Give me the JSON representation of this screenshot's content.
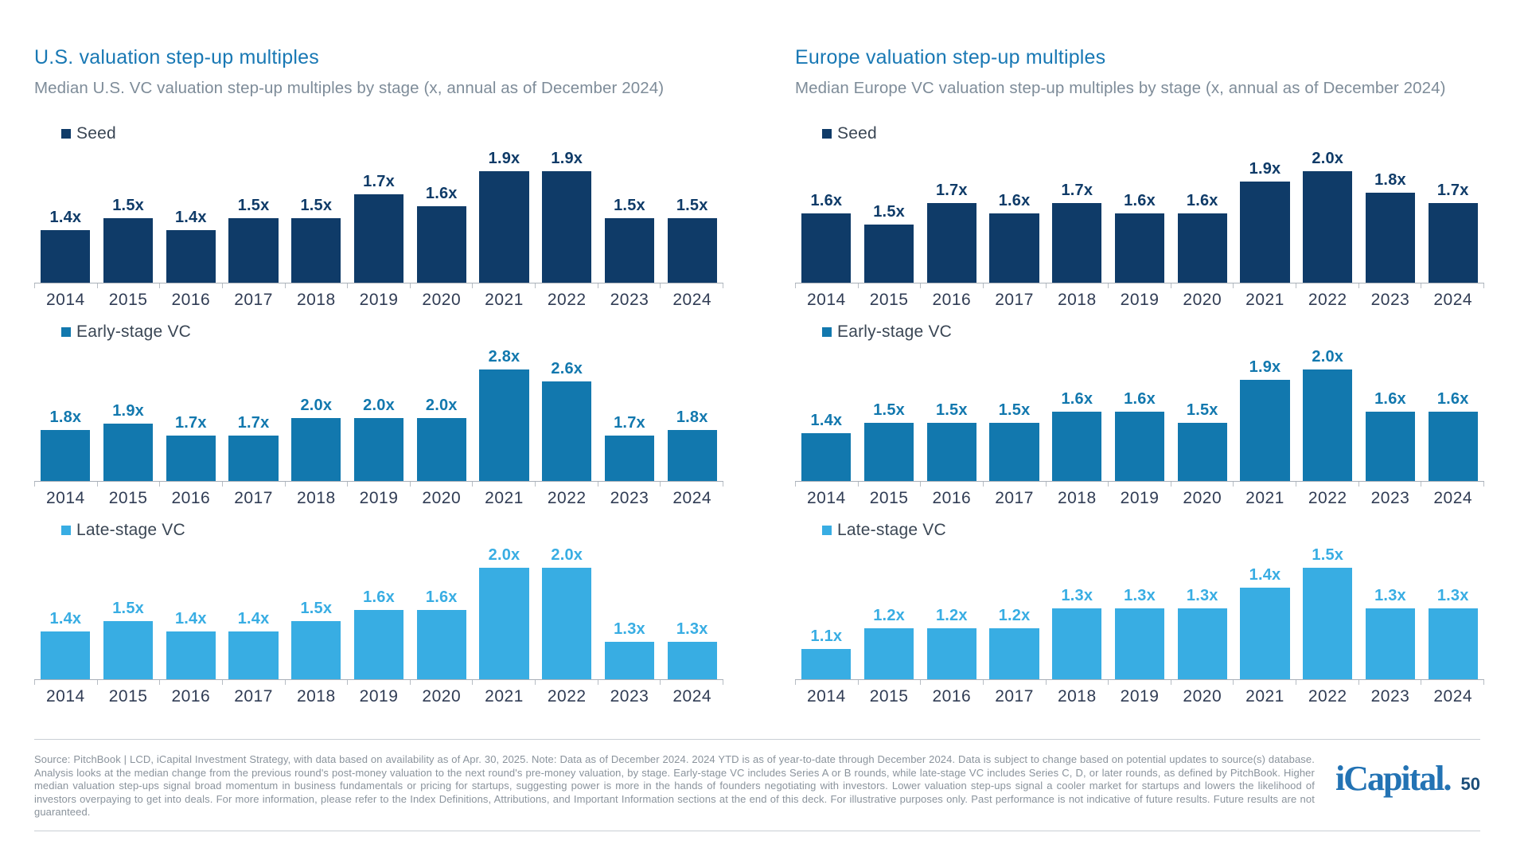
{
  "panels": [
    {
      "title": "U.S. valuation step-up multiples",
      "subtitle": "Median U.S. VC valuation step-up multiples by stage (x, annual as of December 2024)"
    },
    {
      "title": "Europe valuation step-up multiples",
      "subtitle": "Median Europe VC valuation step-up multiples by stage (x, annual as of December 2024)"
    }
  ],
  "colors": {
    "seed": "#0F3B68",
    "early_stage": "#1278AE",
    "late_stage": "#38ADE3",
    "title_blue": "#1878B4",
    "subtitle_gray": "#7E8C99",
    "axis_gray": "#A9B0B8",
    "year_label": "#303C54",
    "footer_gray": "#8A939C",
    "logo_blue": "#2373B4"
  },
  "chart_data": [
    {
      "type": "bar",
      "panel": "U.S.",
      "name": "Seed",
      "legend": "Seed",
      "color": "#0F3B68",
      "unit": "x",
      "categories": [
        "2014",
        "2015",
        "2016",
        "2017",
        "2018",
        "2019",
        "2020",
        "2021",
        "2022",
        "2023",
        "2024"
      ],
      "values": [
        1.4,
        1.5,
        1.4,
        1.5,
        1.5,
        1.7,
        1.6,
        1.9,
        1.9,
        1.5,
        1.5
      ]
    },
    {
      "type": "bar",
      "panel": "U.S.",
      "name": "Early-stage VC",
      "legend": "Early-stage VC",
      "color": "#1278AE",
      "unit": "x",
      "categories": [
        "2014",
        "2015",
        "2016",
        "2017",
        "2018",
        "2019",
        "2020",
        "2021",
        "2022",
        "2023",
        "2024"
      ],
      "values": [
        1.8,
        1.9,
        1.7,
        1.7,
        2.0,
        2.0,
        2.0,
        2.8,
        2.6,
        1.7,
        1.8
      ]
    },
    {
      "type": "bar",
      "panel": "U.S.",
      "name": "Late-stage VC",
      "legend": "Late-stage VC",
      "color": "#38ADE3",
      "unit": "x",
      "categories": [
        "2014",
        "2015",
        "2016",
        "2017",
        "2018",
        "2019",
        "2020",
        "2021",
        "2022",
        "2023",
        "2024"
      ],
      "values": [
        1.4,
        1.5,
        1.4,
        1.4,
        1.5,
        1.6,
        1.6,
        2.0,
        2.0,
        1.3,
        1.3
      ]
    },
    {
      "type": "bar",
      "panel": "Europe",
      "name": "Seed",
      "legend": "Seed",
      "color": "#0F3B68",
      "unit": "x",
      "categories": [
        "2014",
        "2015",
        "2016",
        "2017",
        "2018",
        "2019",
        "2020",
        "2021",
        "2022",
        "2023",
        "2024"
      ],
      "values": [
        1.6,
        1.5,
        1.7,
        1.6,
        1.7,
        1.6,
        1.6,
        1.9,
        2.0,
        1.8,
        1.7
      ]
    },
    {
      "type": "bar",
      "panel": "Europe",
      "name": "Early-stage VC",
      "legend": "Early-stage VC",
      "color": "#1278AE",
      "unit": "x",
      "categories": [
        "2014",
        "2015",
        "2016",
        "2017",
        "2018",
        "2019",
        "2020",
        "2021",
        "2022",
        "2023",
        "2024"
      ],
      "values": [
        1.4,
        1.5,
        1.5,
        1.5,
        1.6,
        1.6,
        1.5,
        1.9,
        2.0,
        1.6,
        1.6
      ]
    },
    {
      "type": "bar",
      "panel": "Europe",
      "name": "Late-stage VC",
      "legend": "Late-stage VC",
      "color": "#38ADE3",
      "unit": "x",
      "categories": [
        "2014",
        "2015",
        "2016",
        "2017",
        "2018",
        "2019",
        "2020",
        "2021",
        "2022",
        "2023",
        "2024"
      ],
      "values": [
        1.1,
        1.2,
        1.2,
        1.2,
        1.3,
        1.3,
        1.3,
        1.4,
        1.5,
        1.3,
        1.3
      ]
    }
  ],
  "footer": {
    "source_text": "Source: PitchBook | LCD, iCapital Investment Strategy, with data based on availability as of Apr. 30, 2025. Note: Data as of December 2024. 2024 YTD is as of year-to-date through December 2024. Data is subject to change based on potential updates to source(s) database. Analysis looks at the median change from the previous round's post-money valuation to the next round's pre-money valuation, by stage. Early-stage VC includes Series A or B rounds, while late-stage VC includes Series C, D, or later rounds, as defined by PitchBook. Higher median valuation step-ups signal broad momentum in business fundamentals or pricing for startups, suggesting power is more in the hands of founders negotiating with investors. Lower valuation step-ups signal a cooler market for startups and lowers the likelihood of investors overpaying to get into deals. For more information, please refer to the Index Definitions, Attributions, and Important Information sections at the end of this deck. For illustrative purposes only. Past performance is not indicative of future results. Future results are not guaranteed.",
    "logo_text": "iCapital.",
    "page_number": "50"
  }
}
